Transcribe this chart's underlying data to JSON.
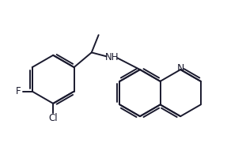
{
  "bg_color": "#ffffff",
  "bond_color": "#1a1a2e",
  "label_color": "#1a1a2e",
  "bond_width": 1.4,
  "font_size": 8.5,
  "figsize": [
    2.87,
    1.86
  ],
  "dpi": 100,
  "xlim": [
    0.0,
    5.8
  ],
  "ylim": [
    0.0,
    3.6
  ]
}
